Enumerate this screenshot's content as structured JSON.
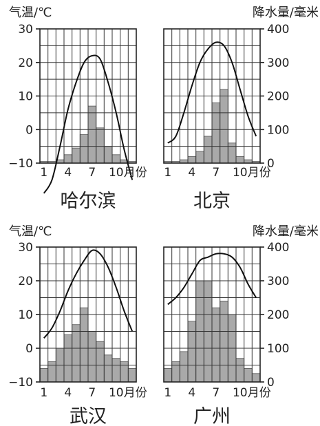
{
  "labels": {
    "temp_unit": "气温/℃",
    "precip_unit": "降水量/毫米",
    "month_suffix": "月份"
  },
  "y_left_ticks": [
    30,
    20,
    10,
    0,
    -10
  ],
  "y_right_ticks": [
    400,
    300,
    200,
    100,
    0
  ],
  "x_ticks": [
    1,
    4,
    7,
    10
  ],
  "colors": {
    "bar": "#a9a9a9",
    "curve": "#111111",
    "grid": "#333333"
  },
  "chart_data": [
    {
      "type": "bar+line",
      "city": "哈尔滨",
      "months": [
        1,
        2,
        3,
        4,
        5,
        6,
        7,
        8,
        9,
        10,
        11,
        12
      ],
      "temperature_c": [
        -19,
        -15,
        -5,
        6,
        14,
        20,
        22,
        21,
        14,
        5,
        -6,
        -15
      ],
      "precipitation_mm": [
        5,
        5,
        10,
        25,
        45,
        85,
        170,
        105,
        50,
        25,
        10,
        5
      ],
      "temp_ylim": [
        -10,
        30
      ],
      "precip_ylim": [
        0,
        400
      ]
    },
    {
      "type": "bar+line",
      "city": "北京",
      "months": [
        1,
        2,
        3,
        4,
        5,
        6,
        7,
        8,
        9,
        10,
        11,
        12
      ],
      "temperature_c": [
        -4,
        -2,
        5,
        13,
        20,
        24,
        26,
        25,
        20,
        12,
        4,
        -2
      ],
      "precipitation_mm": [
        5,
        5,
        10,
        20,
        35,
        80,
        180,
        220,
        60,
        20,
        10,
        5
      ],
      "temp_ylim": [
        -10,
        30
      ],
      "precip_ylim": [
        0,
        400
      ]
    },
    {
      "type": "bar+line",
      "city": "武汉",
      "months": [
        1,
        2,
        3,
        4,
        5,
        6,
        7,
        8,
        9,
        10,
        11,
        12
      ],
      "temperature_c": [
        3,
        6,
        11,
        17,
        22,
        26,
        29,
        28,
        24,
        18,
        11,
        5
      ],
      "precipitation_mm": [
        40,
        60,
        100,
        140,
        170,
        220,
        150,
        120,
        80,
        70,
        60,
        40
      ],
      "temp_ylim": [
        -10,
        30
      ],
      "precip_ylim": [
        0,
        400
      ]
    },
    {
      "type": "bar+line",
      "city": "广州",
      "months": [
        1,
        2,
        3,
        4,
        5,
        6,
        7,
        8,
        9,
        10,
        11,
        12
      ],
      "temperature_c": [
        13,
        15,
        18,
        22,
        26,
        27,
        28,
        28,
        27,
        24,
        19,
        15
      ],
      "precipitation_mm": [
        40,
        60,
        90,
        180,
        300,
        300,
        220,
        240,
        200,
        70,
        40,
        25
      ],
      "temp_ylim": [
        -10,
        30
      ],
      "precip_ylim": [
        0,
        400
      ]
    }
  ]
}
